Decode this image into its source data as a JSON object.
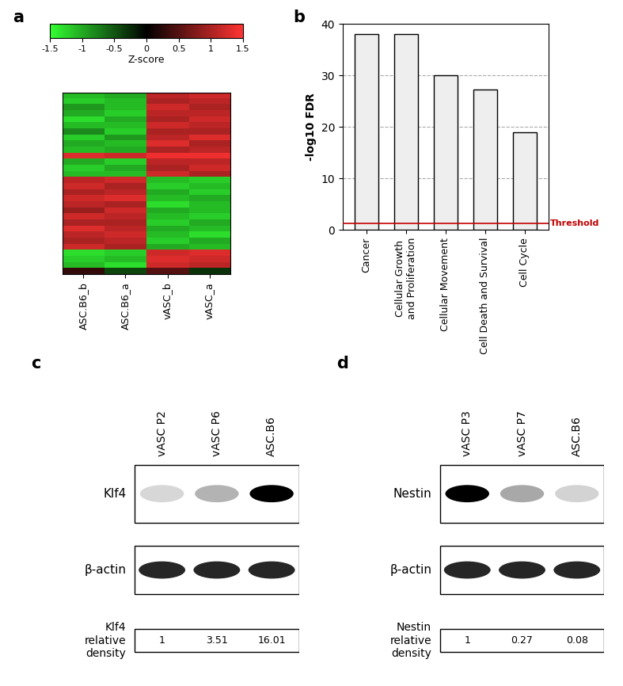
{
  "chart_data": [
    {
      "type": "heatmap",
      "panel": "a",
      "categories": [
        "ASC.B6_b",
        "ASC.B6_a",
        "vASC_b",
        "vASC_a"
      ],
      "cells": [
        [
          -1.1,
          -1.0,
          1.1,
          1.2
        ],
        [
          -1.2,
          -1.1,
          1.0,
          1.1
        ],
        [
          -0.9,
          -1.1,
          1.2,
          1.0
        ],
        [
          -1.0,
          -1.2,
          1.1,
          1.1
        ],
        [
          -1.3,
          -1.0,
          1.0,
          1.2
        ],
        [
          -1.1,
          -1.1,
          1.2,
          1.1
        ],
        [
          -0.8,
          -1.2,
          1.0,
          1.0
        ],
        [
          -1.2,
          -0.9,
          1.1,
          1.3
        ],
        [
          -1.0,
          -1.1,
          1.3,
          1.0
        ],
        [
          -1.1,
          -1.0,
          1.0,
          1.1
        ],
        [
          1.3,
          1.2,
          1.4,
          1.4
        ],
        [
          -1.0,
          -1.2,
          1.1,
          1.1
        ],
        [
          -1.2,
          -1.0,
          1.0,
          1.2
        ],
        [
          -1.1,
          -1.1,
          1.2,
          1.0
        ],
        [
          1.1,
          1.2,
          -1.1,
          -1.2
        ],
        [
          1.2,
          1.0,
          -1.2,
          -1.1
        ],
        [
          1.0,
          1.1,
          -1.0,
          -1.2
        ],
        [
          1.2,
          1.3,
          -1.1,
          -1.0
        ],
        [
          1.1,
          1.0,
          -1.3,
          -1.1
        ],
        [
          0.9,
          1.2,
          -1.0,
          -1.1
        ],
        [
          1.2,
          1.1,
          -1.1,
          -1.2
        ],
        [
          1.0,
          1.0,
          -1.2,
          -1.0
        ],
        [
          1.3,
          1.1,
          -1.0,
          -1.1
        ],
        [
          1.1,
          1.2,
          -1.1,
          -1.3
        ],
        [
          1.0,
          1.1,
          -1.2,
          -1.0
        ],
        [
          1.2,
          1.0,
          -1.0,
          -1.1
        ],
        [
          -1.3,
          -1.2,
          1.2,
          1.3
        ],
        [
          -1.2,
          -1.1,
          1.3,
          1.2
        ],
        [
          -1.1,
          -1.3,
          1.2,
          1.1
        ],
        [
          0.3,
          -0.4,
          0.5,
          -0.3
        ]
      ],
      "colorbar": {
        "label": "Z-score",
        "range": [
          -1.5,
          1.5
        ],
        "ticks": [
          -1.5,
          -1,
          -0.5,
          0,
          0.5,
          1,
          1.5
        ]
      }
    },
    {
      "type": "bar",
      "panel": "b",
      "categories": [
        "Cancer",
        "Cellular Growth\nand Proliferation",
        "Cellular Movement",
        "Cell Death and Survival",
        "Cell Cycle"
      ],
      "values": [
        38,
        38,
        30,
        27.3,
        19
      ],
      "color": "#eeeeee",
      "y_label": "-log10 FDR",
      "ylim": [
        0,
        40
      ],
      "yticks": [
        0,
        10,
        20,
        30,
        40
      ],
      "grid": true,
      "threshold": {
        "value": 1.3,
        "label": "Threshold",
        "color": "#c00000"
      }
    },
    {
      "type": "blot",
      "panel": "c",
      "lanes": [
        "vASC P2",
        "vASC P6",
        "ASC.B6"
      ],
      "protein": "Klf4",
      "loading_control": "β-actin",
      "density_label": "Klf4\nrelative\ndensity",
      "relative_density": [
        1,
        3.51,
        16.01
      ]
    },
    {
      "type": "blot",
      "panel": "d",
      "lanes": [
        "vASC P3",
        "vASC P7",
        "ASC.B6"
      ],
      "protein": "Nestin",
      "loading_control": "β-actin",
      "density_label": "Nestin\nrelative\ndensity",
      "relative_density": [
        1,
        0.27,
        0.08
      ]
    }
  ]
}
